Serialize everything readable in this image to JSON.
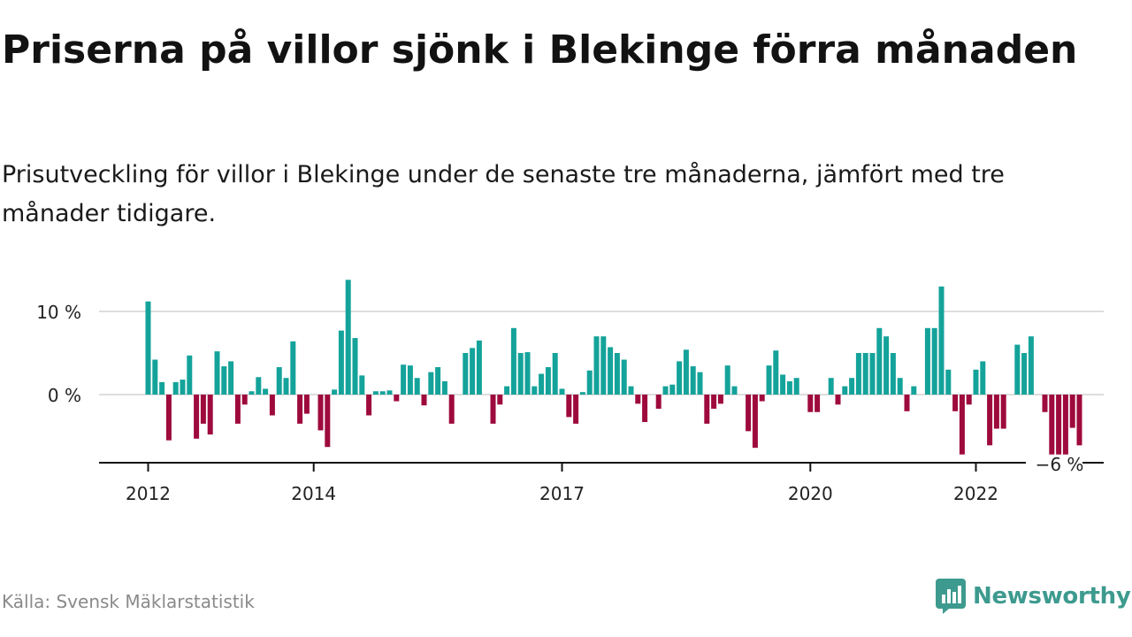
{
  "title": "Priserna på villor sjönk i Blekinge förra månaden",
  "subtitle": "Prisutveckling för villor i Blekinge under de senaste tre månaderna, jämfört med tre månader tidigare.",
  "source": "Källa: Svensk Mäklarstatistik",
  "logo_text": "Newsworthy",
  "colors": {
    "positive": "#14a39a",
    "negative": "#9e0a3d",
    "gridline": "#dddddd",
    "axis": "#111111",
    "logo": "#3d9a8e"
  },
  "chart_data": {
    "type": "bar",
    "title": "Priserna på villor sjönk i Blekinge förra månaden",
    "subtitle": "Prisutveckling för villor i Blekinge under de senaste tre månaderna, jämfört med tre månader tidigare.",
    "xlabel": "",
    "ylabel": "",
    "ylim": [
      -8,
      14
    ],
    "grid": true,
    "y_ticks": [
      {
        "value": 0,
        "label": "0 %"
      },
      {
        "value": 10,
        "label": "10 %"
      }
    ],
    "x_ticks": [
      {
        "year": 2012,
        "label": "2012"
      },
      {
        "year": 2014,
        "label": "2014"
      },
      {
        "year": 2017,
        "label": "2017"
      },
      {
        "year": 2020,
        "label": "2020"
      },
      {
        "year": 2022,
        "label": "2022"
      }
    ],
    "start": "2012-01",
    "last_value_label": "−6 %",
    "values": [
      11.2,
      4.2,
      1.5,
      -5.5,
      1.5,
      1.8,
      4.7,
      -5.3,
      -3.5,
      -4.8,
      5.2,
      3.4,
      4.0,
      -3.5,
      -1.2,
      0.4,
      2.1,
      0.7,
      -2.5,
      3.3,
      2.0,
      6.4,
      -3.5,
      -2.3,
      0.0,
      -4.3,
      -6.3,
      0.6,
      7.7,
      13.8,
      6.8,
      2.3,
      -2.5,
      0.4,
      0.4,
      0.5,
      -0.8,
      3.6,
      3.5,
      2.0,
      -1.3,
      2.7,
      3.3,
      1.6,
      -3.5,
      0.0,
      5.0,
      5.6,
      6.5,
      0.0,
      -3.5,
      -1.2,
      1.0,
      8.0,
      5.0,
      5.1,
      1.0,
      2.5,
      3.3,
      5.0,
      0.7,
      -2.7,
      -3.5,
      0.3,
      2.9,
      7.0,
      7.0,
      5.7,
      5.0,
      4.2,
      1.0,
      -1.1,
      -3.3,
      0.0,
      -1.7,
      1.0,
      1.2,
      4.0,
      5.4,
      3.4,
      2.7,
      -3.5,
      -1.7,
      -1.1,
      3.5,
      1.0,
      0.0,
      -4.4,
      -6.4,
      -0.8,
      3.5,
      5.3,
      2.4,
      1.6,
      2.0,
      0.0,
      -2.1,
      -2.1,
      0.0,
      2.0,
      -1.2,
      1.0,
      2.0,
      5.0,
      5.0,
      5.0,
      8.0,
      7.0,
      5.0,
      2.0,
      -2.0,
      1.0,
      0.0,
      8.0,
      8.0,
      13.0,
      3.0,
      -2.0,
      -7.2,
      -1.2,
      3.0,
      4.0,
      -6.1,
      -4.1,
      -4.1,
      0.0,
      6.0,
      5.0,
      7.0,
      0.0,
      -2.1,
      -7.2,
      -7.2,
      -7.2,
      -4.0,
      -6.1
    ]
  }
}
